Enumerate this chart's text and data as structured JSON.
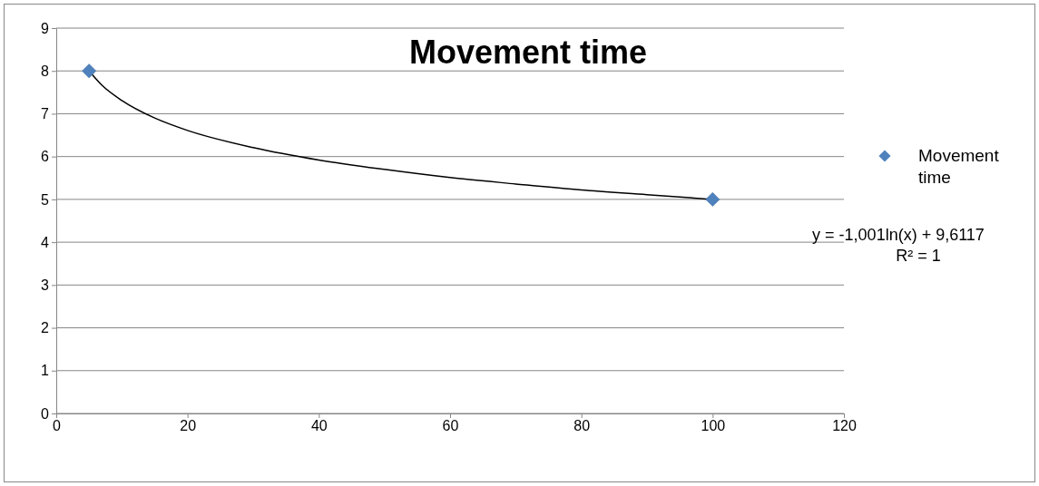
{
  "chart_data": {
    "type": "scatter",
    "title": "Movement time",
    "series": [
      {
        "name": "Movement time",
        "color": "#4f81bd",
        "marker": "diamond",
        "x": [
          5,
          100
        ],
        "values": [
          8,
          5
        ]
      },
      {
        "type": "line",
        "marker": "none",
        "color": "#000000",
        "x": [
          5,
          7,
          10,
          15,
          20,
          30,
          40,
          50,
          60,
          70,
          80,
          90,
          100
        ],
        "values": [
          8.0,
          7.66,
          7.31,
          6.9,
          6.61,
          6.21,
          5.92,
          5.7,
          5.51,
          5.36,
          5.22,
          5.11,
          5.0
        ]
      }
    ],
    "xlim": [
      0,
      120
    ],
    "xticks": [
      0,
      20,
      40,
      60,
      80,
      100,
      120
    ],
    "ylim": [
      0,
      9
    ],
    "yticks": [
      0,
      1,
      2,
      3,
      4,
      5,
      6,
      7,
      8,
      9
    ],
    "grid": "y",
    "legend": "right",
    "annotations": [
      "y = -1,001ln(x) + 9,6117",
      "R² = 1"
    ]
  }
}
